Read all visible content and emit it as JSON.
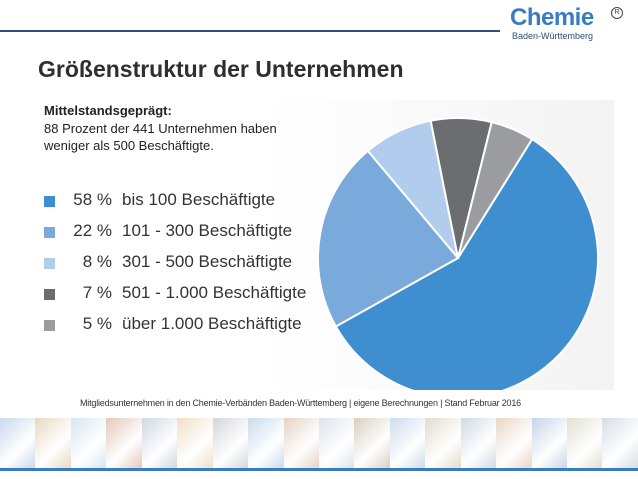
{
  "logo": {
    "word": "Chemie",
    "registered": "R",
    "subline": "Baden-Württemberg"
  },
  "title": "Größenstruktur der Unternehmen",
  "subhead": "Mittelstandsgeprägt:",
  "description": "88 Prozent der 441 Unternehmen haben weniger als 500 Beschäftigte.",
  "footnote": "Mitgliedsunternehmen in den Chemie-Verbänden Baden-Württemberg | eigene Berechnungen | Stand Februar 2016",
  "colors": {
    "brand": "#3a7cc1",
    "dark_blue": "#2d4f7c",
    "slice_1": "#3f8ed0",
    "slice_2": "#7aaadb",
    "slice_3": "#b2cced",
    "slice_4": "#6b6d71",
    "slice_5": "#9a9ca0"
  },
  "strip_colors": [
    "#c9d9ee",
    "#e8d9c2",
    "#d7e6f2",
    "#e3c9b8",
    "#cfd8e4",
    "#f0e0c8",
    "#d2d6dc",
    "#c8dcea",
    "#e6d2c6",
    "#dde4ee",
    "#d9cfc0",
    "#cddcec",
    "#e4dccc",
    "#d0dae6",
    "#ead6c6",
    "#c6d4e6",
    "#e2e0d2",
    "#d4dee8"
  ],
  "chart_data": {
    "type": "pie",
    "title": "Größenstruktur der Unternehmen",
    "series": [
      {
        "name": "bis 100 Beschäftigte",
        "percent_label": "58 %",
        "value": 58,
        "color": "#3f8ed0"
      },
      {
        "name": "101 - 300 Beschäftigte",
        "percent_label": "22 %",
        "value": 22,
        "color": "#7aaadb"
      },
      {
        "name": "301 - 500 Beschäftigte",
        "percent_label": "8 %",
        "value": 8,
        "color": "#b2cced"
      },
      {
        "name": "501 - 1.000 Beschäftigte",
        "percent_label": "7 %",
        "value": 7,
        "color": "#6b6d71"
      },
      {
        "name": "über 1.000 Beschäftigte",
        "percent_label": "5 %",
        "value": 5,
        "color": "#9a9ca0"
      }
    ],
    "legend_position": "left"
  }
}
